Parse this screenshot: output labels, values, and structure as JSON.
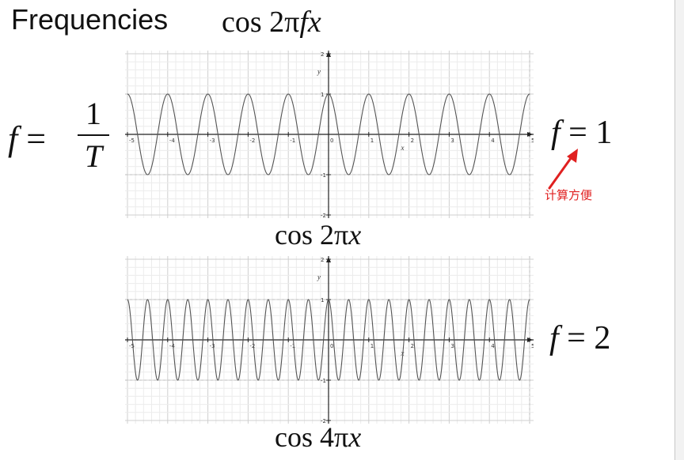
{
  "slide": {
    "title_word": "Frequencies",
    "title_formula": {
      "fn": "cos",
      "coef": "2",
      "pi": "π",
      "f": "f",
      "x": "x"
    },
    "period_relation": {
      "lhs": "f",
      "eq": " = ",
      "numerator": "1",
      "denominator": "T"
    },
    "annotation": {
      "text": "计算方便",
      "color": "#e02020"
    }
  },
  "chart_data": [
    {
      "type": "line",
      "function": "cos(2πx)",
      "frequency": 1,
      "caption": {
        "fn": "cos",
        "coef": "2",
        "pi": "π",
        "x": "x"
      },
      "side_label": {
        "lhs": "f",
        "eq": " = ",
        "rhs": "1"
      },
      "xlabel": "x",
      "ylabel": "y",
      "xlim": [
        -5,
        5
      ],
      "ylim": [
        -2,
        2
      ],
      "x_ticks": [
        "-5",
        "-4",
        "-3",
        "-2",
        "-1",
        "0",
        "1",
        "2",
        "3",
        "4",
        "5"
      ],
      "y_ticks": [
        "2",
        "1",
        "-1",
        "-2"
      ],
      "grid": true,
      "series": [
        {
          "x_start": -5,
          "x_end": 5,
          "amplitude": 1,
          "frequency": 1,
          "color": "#555555"
        }
      ]
    },
    {
      "type": "line",
      "function": "cos(4πx)",
      "frequency": 2,
      "caption": {
        "fn": "cos",
        "coef": "4",
        "pi": "π",
        "x": "x"
      },
      "side_label": {
        "lhs": "f",
        "eq": " = ",
        "rhs": "2"
      },
      "xlabel": "x",
      "ylabel": "y",
      "xlim": [
        -5,
        5
      ],
      "ylim": [
        -2,
        2
      ],
      "x_ticks": [
        "-5",
        "-4",
        "-3",
        "-2",
        "-1",
        "0",
        "1",
        "2",
        "3",
        "4",
        "5"
      ],
      "y_ticks": [
        "2",
        "1",
        "-1",
        "-2"
      ],
      "grid": true,
      "series": [
        {
          "x_start": -5,
          "x_end": 5,
          "amplitude": 1,
          "frequency": 2,
          "color": "#555555"
        }
      ]
    }
  ]
}
